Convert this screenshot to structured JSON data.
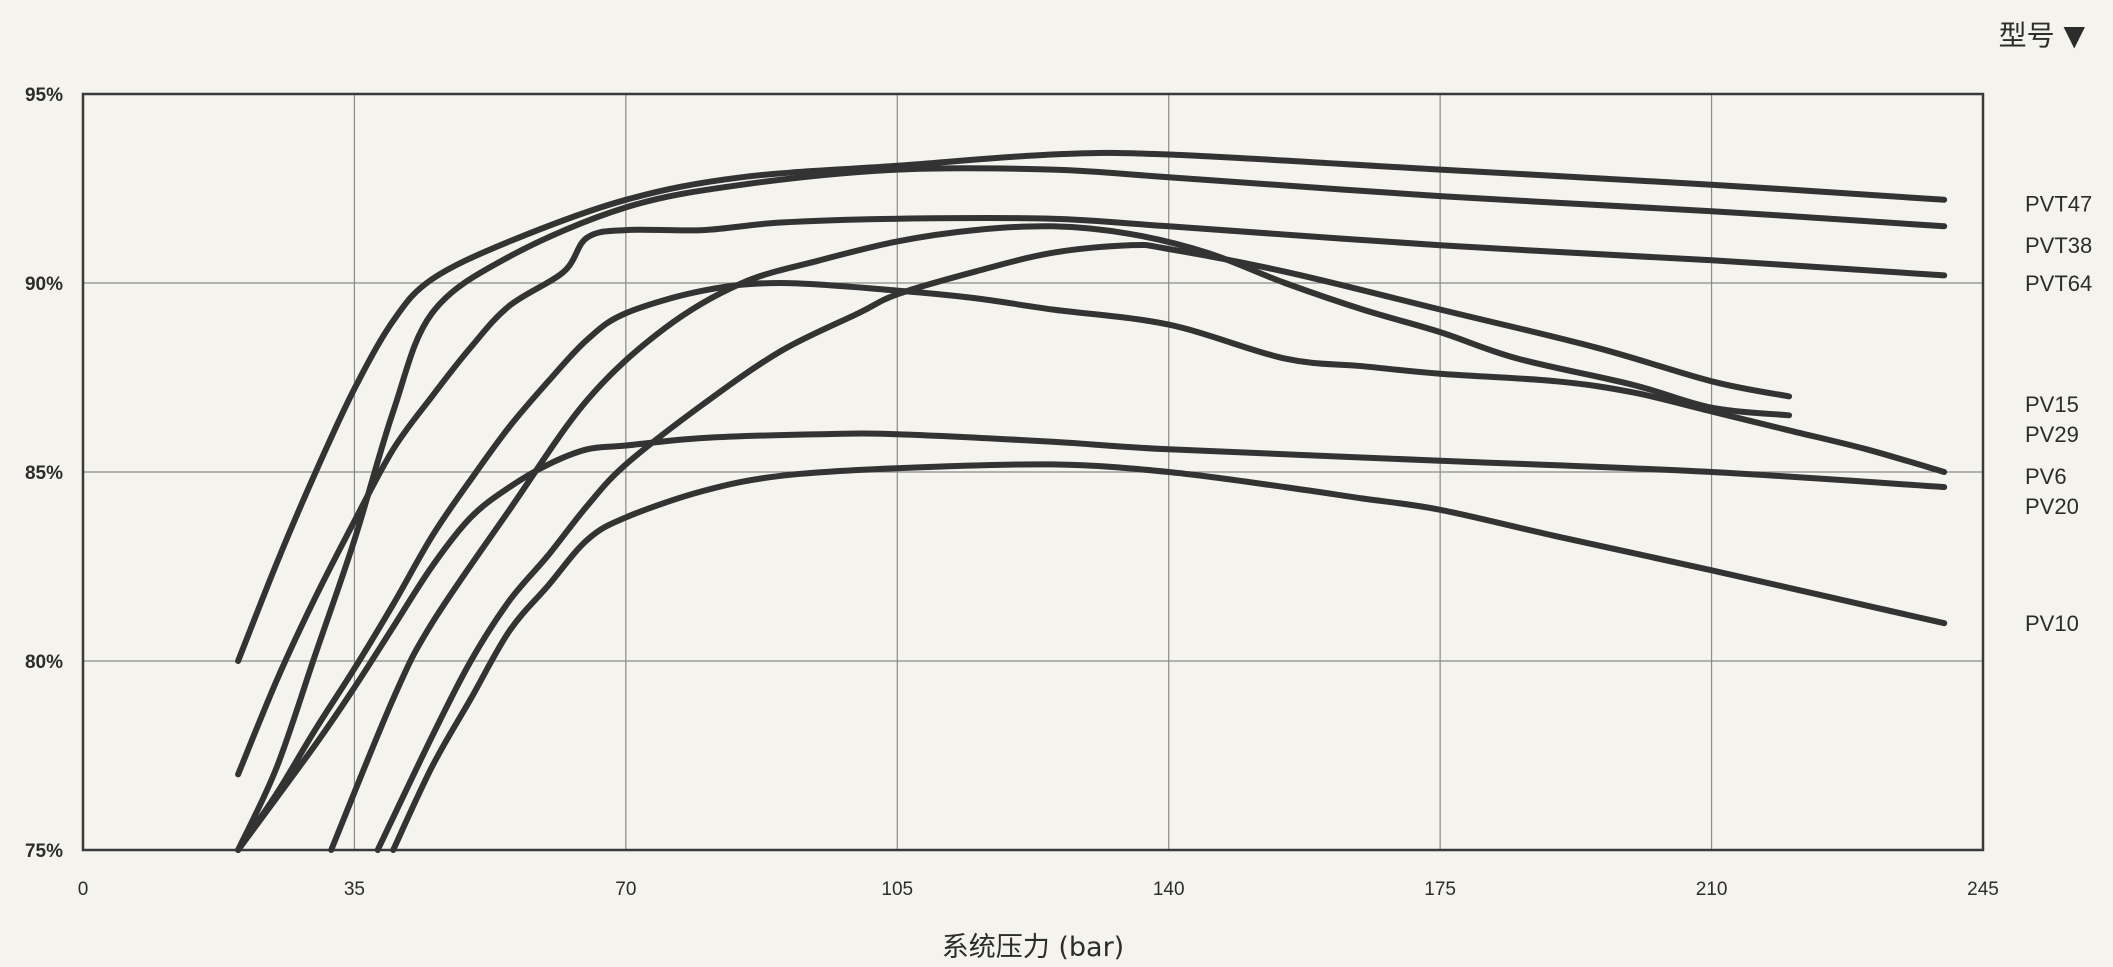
{
  "chart_data": {
    "type": "line",
    "title": "",
    "legend_title": "型号 ▼",
    "xlabel": "系统压力 (bar)",
    "ylabel": "",
    "xlim": [
      0,
      245
    ],
    "ylim": [
      75,
      95
    ],
    "x_ticks": [
      "0",
      "35",
      "70",
      "105",
      "140",
      "175",
      "210",
      "245"
    ],
    "y_ticks": [
      "95%",
      "90%",
      "85%",
      "80%",
      "75%"
    ],
    "y_tick_values": [
      95,
      90,
      85,
      80,
      75
    ],
    "x_tick_values": [
      0,
      35,
      70,
      105,
      140,
      175,
      210,
      245
    ],
    "grid": true,
    "legend_position": "right",
    "line_color": "#333333",
    "series": [
      {
        "name": "PVT47",
        "points": [
          [
            20,
            80.0
          ],
          [
            25,
            82.6
          ],
          [
            30,
            85.0
          ],
          [
            35,
            87.2
          ],
          [
            40,
            89.0
          ],
          [
            45,
            90.1
          ],
          [
            55,
            91.1
          ],
          [
            70,
            92.2
          ],
          [
            85,
            92.8
          ],
          [
            105,
            93.1
          ],
          [
            125,
            93.4
          ],
          [
            140,
            93.4
          ],
          [
            175,
            93.0
          ],
          [
            210,
            92.6
          ],
          [
            240,
            92.2
          ]
        ]
      },
      {
        "name": "PVT38",
        "points": [
          [
            20,
            75.0
          ],
          [
            25,
            77.2
          ],
          [
            30,
            80.2
          ],
          [
            35,
            83.2
          ],
          [
            40,
            86.6
          ],
          [
            45,
            89.2
          ],
          [
            55,
            90.7
          ],
          [
            70,
            92.0
          ],
          [
            85,
            92.6
          ],
          [
            105,
            93.0
          ],
          [
            125,
            93.0
          ],
          [
            140,
            92.8
          ],
          [
            175,
            92.3
          ],
          [
            210,
            91.9
          ],
          [
            240,
            91.5
          ]
        ]
      },
      {
        "name": "PVT64",
        "points": [
          [
            20,
            77.0
          ],
          [
            25,
            79.5
          ],
          [
            30,
            81.7
          ],
          [
            35,
            83.7
          ],
          [
            40,
            85.6
          ],
          [
            45,
            87.0
          ],
          [
            50,
            88.3
          ],
          [
            55,
            89.4
          ],
          [
            62,
            90.3
          ],
          [
            65,
            91.2
          ],
          [
            70,
            91.4
          ],
          [
            80,
            91.4
          ],
          [
            90,
            91.6
          ],
          [
            105,
            91.7
          ],
          [
            125,
            91.7
          ],
          [
            140,
            91.5
          ],
          [
            175,
            91.0
          ],
          [
            210,
            90.6
          ],
          [
            240,
            90.2
          ]
        ]
      },
      {
        "name": "PV15",
        "points": [
          [
            32,
            75.0
          ],
          [
            40,
            79.0
          ],
          [
            45,
            81.0
          ],
          [
            55,
            84.0
          ],
          [
            65,
            86.9
          ],
          [
            75,
            88.8
          ],
          [
            85,
            90.0
          ],
          [
            95,
            90.6
          ],
          [
            105,
            91.1
          ],
          [
            115,
            91.4
          ],
          [
            125,
            91.5
          ],
          [
            135,
            91.3
          ],
          [
            145,
            90.8
          ],
          [
            155,
            90.0
          ],
          [
            165,
            89.3
          ],
          [
            175,
            88.7
          ],
          [
            185,
            88.0
          ],
          [
            200,
            87.3
          ],
          [
            210,
            86.7
          ],
          [
            220,
            86.5
          ]
        ]
      },
      {
        "name": "PV29",
        "points": [
          [
            38,
            75.0
          ],
          [
            45,
            78.0
          ],
          [
            50,
            80.0
          ],
          [
            55,
            81.6
          ],
          [
            60,
            82.8
          ],
          [
            65,
            84.1
          ],
          [
            70,
            85.2
          ],
          [
            80,
            86.8
          ],
          [
            90,
            88.2
          ],
          [
            100,
            89.2
          ],
          [
            105,
            89.7
          ],
          [
            115,
            90.3
          ],
          [
            125,
            90.8
          ],
          [
            135,
            91.0
          ],
          [
            140,
            90.9
          ],
          [
            155,
            90.3
          ],
          [
            175,
            89.3
          ],
          [
            195,
            88.3
          ],
          [
            210,
            87.4
          ],
          [
            220,
            87.0
          ]
        ]
      },
      {
        "name": "PV6",
        "points": [
          [
            20,
            75.0
          ],
          [
            30,
            77.8
          ],
          [
            35,
            79.3
          ],
          [
            40,
            80.9
          ],
          [
            45,
            82.5
          ],
          [
            50,
            83.8
          ],
          [
            55,
            84.6
          ],
          [
            60,
            85.2
          ],
          [
            65,
            85.6
          ],
          [
            70,
            85.7
          ],
          [
            80,
            85.9
          ],
          [
            95,
            86.0
          ],
          [
            105,
            86.0
          ],
          [
            125,
            85.8
          ],
          [
            140,
            85.6
          ],
          [
            175,
            85.3
          ],
          [
            210,
            85.0
          ],
          [
            240,
            84.6
          ]
        ]
      },
      {
        "name": "PV20",
        "points": [
          [
            20,
            75.0
          ],
          [
            25,
            76.5
          ],
          [
            30,
            78.2
          ],
          [
            35,
            79.8
          ],
          [
            40,
            81.5
          ],
          [
            45,
            83.3
          ],
          [
            50,
            84.8
          ],
          [
            55,
            86.2
          ],
          [
            60,
            87.4
          ],
          [
            65,
            88.5
          ],
          [
            70,
            89.2
          ],
          [
            80,
            89.8
          ],
          [
            90,
            90.0
          ],
          [
            105,
            89.8
          ],
          [
            115,
            89.6
          ],
          [
            125,
            89.3
          ],
          [
            140,
            88.9
          ],
          [
            155,
            88.0
          ],
          [
            165,
            87.8
          ],
          [
            175,
            87.6
          ],
          [
            190,
            87.4
          ],
          [
            200,
            87.1
          ],
          [
            210,
            86.6
          ],
          [
            220,
            86.1
          ],
          [
            230,
            85.6
          ],
          [
            240,
            85.0
          ]
        ]
      },
      {
        "name": "PV10",
        "points": [
          [
            40,
            75.0
          ],
          [
            45,
            77.2
          ],
          [
            50,
            79.0
          ],
          [
            55,
            80.8
          ],
          [
            60,
            82.0
          ],
          [
            65,
            83.2
          ],
          [
            70,
            83.8
          ],
          [
            80,
            84.5
          ],
          [
            90,
            84.9
          ],
          [
            105,
            85.1
          ],
          [
            125,
            85.2
          ],
          [
            140,
            85.0
          ],
          [
            155,
            84.6
          ],
          [
            165,
            84.3
          ],
          [
            175,
            84.0
          ],
          [
            190,
            83.3
          ],
          [
            210,
            82.4
          ],
          [
            225,
            81.7
          ],
          [
            240,
            81.0
          ]
        ]
      }
    ],
    "series_labels": [
      {
        "name": "PVT47",
        "y": 92.1
      },
      {
        "name": "PVT38",
        "y": 91.0
      },
      {
        "name": "PVT64",
        "y": 90.0
      },
      {
        "name": "PV15",
        "y": 86.8
      },
      {
        "name": "PV29",
        "y": 86.0
      },
      {
        "name": "PV6",
        "y": 84.9
      },
      {
        "name": "PV20",
        "y": 84.1
      },
      {
        "name": "PV10",
        "y": 81.0
      }
    ]
  }
}
